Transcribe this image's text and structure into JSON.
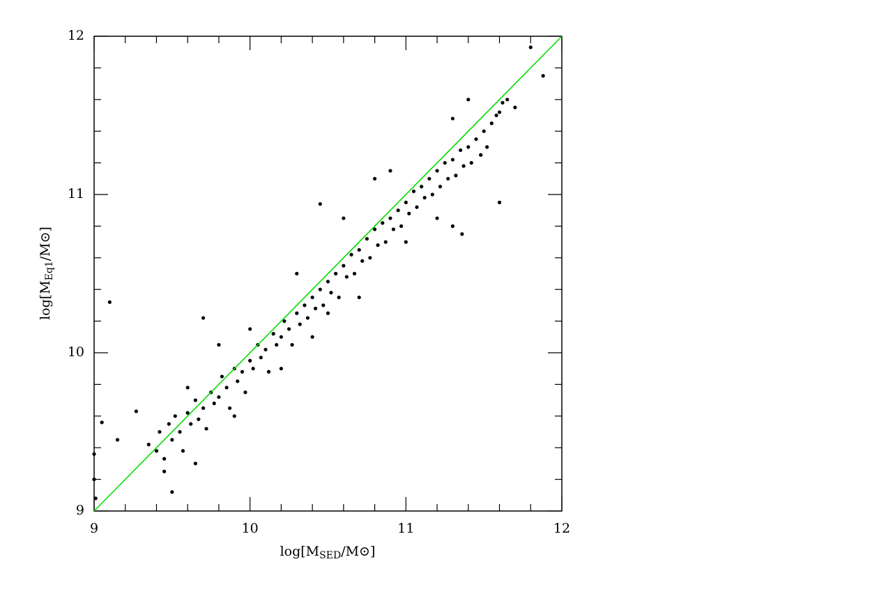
{
  "chart_data": {
    "type": "scatter",
    "xlabel": {
      "prefix": "log[M",
      "sub": "SED",
      "suffix": "/M⊙]"
    },
    "ylabel": {
      "prefix": "log[M",
      "sub": "Eq1",
      "suffix": "/M⊙]"
    },
    "xlim": [
      9,
      12
    ],
    "ylim": [
      9,
      12
    ],
    "xticks": [
      9,
      10,
      11,
      12
    ],
    "yticks": [
      9,
      10,
      11,
      12
    ],
    "xminor_ticks": [
      9.2,
      9.4,
      9.6,
      9.8,
      10.2,
      10.4,
      10.6,
      10.8,
      11.2,
      11.4,
      11.6,
      11.8
    ],
    "yminor_ticks": [
      9.2,
      9.4,
      9.6,
      9.8,
      10.2,
      10.4,
      10.6,
      10.8,
      11.2,
      11.4,
      11.6,
      11.8
    ],
    "reference_line": {
      "x": [
        9,
        12
      ],
      "y": [
        9,
        12
      ],
      "color": "#00dd00"
    },
    "series": [
      {
        "color": "#000000",
        "x": [
          9.35,
          9.4,
          9.42,
          9.45,
          9.48,
          9.5,
          9.52,
          9.55,
          9.57,
          9.6,
          9.62,
          9.65,
          9.67,
          9.7,
          9.72,
          9.75,
          9.77,
          9.8,
          9.82,
          9.85,
          9.87,
          9.9,
          9.92,
          9.95,
          9.97,
          10.0,
          10.02,
          10.05,
          10.07,
          10.1,
          10.12,
          10.15,
          10.17,
          10.2,
          10.22,
          10.25,
          10.27,
          10.3,
          10.32,
          10.35,
          10.37,
          10.4,
          10.42,
          10.45,
          10.47,
          10.5,
          10.52,
          10.55,
          10.57,
          10.6,
          10.62,
          10.65,
          10.67,
          10.7,
          10.72,
          10.75,
          10.77,
          10.8,
          10.82,
          10.85,
          10.87,
          10.9,
          10.92,
          10.95,
          10.97,
          11.0,
          11.02,
          11.05,
          11.07,
          11.1,
          11.12,
          11.15,
          11.17,
          11.2,
          11.22,
          11.25,
          11.27,
          11.3,
          11.32,
          11.35,
          11.37,
          11.4,
          11.42,
          11.45,
          11.48,
          11.5,
          11.52,
          11.55,
          11.58,
          11.6,
          11.62,
          11.65,
          11.7,
          11.3,
          11.4,
          10.8,
          10.9,
          10.6,
          10.3,
          10.0,
          9.8,
          9.6,
          10.5,
          10.7,
          11.0,
          11.2,
          9.9,
          10.2,
          10.4,
          9.65,
          9.45,
          9.1,
          9.0,
          9.0,
          9.05,
          11.8,
          11.88,
          9.7,
          10.45,
          11.3,
          11.6,
          11.36,
          9.5,
          9.01,
          9.27,
          9.15
        ],
        "values": [
          9.42,
          9.38,
          9.5,
          9.33,
          9.55,
          9.45,
          9.6,
          9.5,
          9.38,
          9.62,
          9.55,
          9.7,
          9.58,
          9.65,
          9.52,
          9.75,
          9.68,
          9.72,
          9.85,
          9.78,
          9.65,
          9.9,
          9.82,
          9.88,
          9.75,
          9.95,
          9.9,
          10.05,
          9.97,
          10.02,
          9.88,
          10.12,
          10.05,
          10.1,
          10.2,
          10.15,
          10.05,
          10.25,
          10.18,
          10.3,
          10.22,
          10.35,
          10.28,
          10.4,
          10.3,
          10.45,
          10.38,
          10.5,
          10.35,
          10.55,
          10.48,
          10.62,
          10.5,
          10.65,
          10.58,
          10.72,
          10.6,
          10.78,
          10.68,
          10.82,
          10.7,
          10.85,
          10.78,
          10.9,
          10.8,
          10.95,
          10.88,
          11.02,
          10.92,
          11.05,
          10.98,
          11.1,
          11.0,
          11.15,
          11.05,
          11.2,
          11.1,
          11.22,
          11.12,
          11.28,
          11.18,
          11.3,
          11.2,
          11.35,
          11.25,
          11.4,
          11.3,
          11.45,
          11.5,
          11.52,
          11.58,
          11.6,
          11.55,
          11.48,
          11.6,
          11.1,
          11.15,
          10.85,
          10.5,
          10.15,
          10.05,
          9.78,
          10.25,
          10.35,
          10.7,
          10.85,
          9.6,
          9.9,
          10.1,
          9.3,
          9.25,
          10.32,
          9.36,
          9.2,
          9.56,
          11.93,
          11.75,
          10.22,
          10.94,
          10.8,
          10.95,
          10.75,
          9.12,
          9.08,
          9.63,
          9.45
        ]
      }
    ]
  }
}
